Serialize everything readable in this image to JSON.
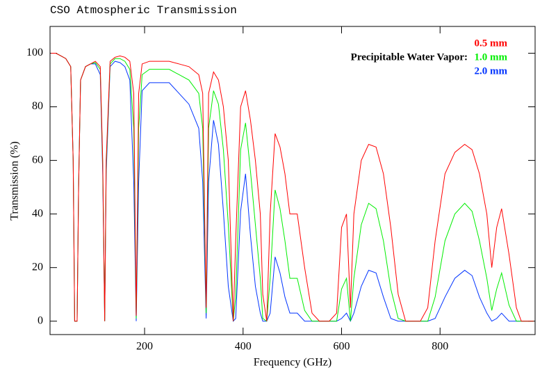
{
  "chart_data": {
    "type": "line",
    "title": "CSO Atmospheric Transmission",
    "xlabel": "Frequency (GHz)",
    "ylabel": "Transmission (%)",
    "legend_title": "Precipitable Water Vapor:",
    "legend_position": "top right",
    "x": [
      10,
      20,
      30,
      40,
      50,
      55,
      58,
      63,
      66,
      70,
      80,
      90,
      100,
      110,
      115,
      119,
      122,
      130,
      140,
      150,
      160,
      170,
      178,
      183,
      188,
      195,
      210,
      230,
      250,
      270,
      290,
      310,
      318,
      325,
      330,
      340,
      350,
      360,
      370,
      380,
      385,
      395,
      405,
      415,
      425,
      435,
      440,
      448,
      455,
      465,
      475,
      485,
      495,
      510,
      525,
      540,
      555,
      575,
      590,
      600,
      610,
      618,
      625,
      640,
      655,
      670,
      685,
      700,
      715,
      730,
      760,
      775,
      790,
      810,
      830,
      850,
      865,
      880,
      895,
      905,
      915,
      925,
      940,
      955,
      965,
      990
    ],
    "series": [
      {
        "name": "0.5 mm",
        "color": "#ff0000",
        "values": [
          100,
          100,
          99,
          98,
          95,
          60,
          0,
          0,
          50,
          90,
          95,
          96,
          97,
          95,
          60,
          0,
          60,
          97,
          98.5,
          99,
          98.5,
          97,
          85,
          2,
          85,
          96,
          97,
          97,
          97,
          96,
          95,
          92,
          85,
          5,
          85,
          93,
          90,
          80,
          60,
          0,
          30,
          80,
          86,
          75,
          60,
          40,
          10,
          0,
          40,
          70,
          65,
          55,
          40,
          40,
          20,
          3,
          0,
          0,
          3,
          35,
          40,
          5,
          40,
          60,
          66,
          65,
          55,
          35,
          10,
          0,
          0,
          5,
          30,
          55,
          63,
          66,
          64,
          55,
          40,
          20,
          35,
          42,
          25,
          5,
          0,
          0
        ]
      },
      {
        "name": "1.0 mm",
        "color": "#00ee00",
        "values": [
          100,
          100,
          99,
          98,
          95,
          60,
          0,
          0,
          50,
          90,
          95,
          96,
          96.5,
          94,
          58,
          0,
          58,
          96,
          98,
          98,
          97,
          94,
          72,
          1,
          72,
          92,
          94,
          94,
          94,
          92,
          90,
          85,
          72,
          3,
          72,
          86,
          81,
          64,
          36,
          0,
          9,
          64,
          74,
          56,
          36,
          16,
          1,
          0,
          16,
          49,
          42,
          30,
          16,
          16,
          4,
          0,
          0,
          0,
          0,
          12,
          16,
          0,
          16,
          36,
          44,
          42,
          30,
          12,
          1,
          0,
          0,
          0,
          9,
          30,
          40,
          44,
          41,
          30,
          16,
          4,
          12,
          18,
          6,
          0,
          0,
          0
        ]
      },
      {
        "name": "2.0 mm",
        "color": "#0033ff",
        "values": [
          100,
          100,
          99,
          98,
          95,
          60,
          0,
          0,
          50,
          90,
          95,
          96,
          96,
          92,
          55,
          0,
          55,
          95,
          97,
          96.5,
          95,
          90,
          52,
          0,
          52,
          86,
          89,
          89,
          89,
          85,
          81,
          72,
          52,
          1,
          52,
          75,
          66,
          41,
          13,
          0,
          1,
          41,
          55,
          32,
          13,
          3,
          0,
          0,
          3,
          24,
          18,
          9,
          3,
          3,
          0,
          0,
          0,
          0,
          0,
          1,
          3,
          0,
          3,
          13,
          19,
          18,
          9,
          1,
          0,
          0,
          0,
          0,
          1,
          9,
          16,
          19,
          17,
          9,
          3,
          0,
          1,
          3,
          0,
          0,
          0,
          0
        ]
      }
    ],
    "xlim": [
      8,
      993
    ],
    "xticks": [
      200,
      400,
      600,
      800
    ],
    "ylim": [
      -5,
      110
    ],
    "yticks": [
      0,
      20,
      40,
      60,
      80,
      100
    ]
  }
}
